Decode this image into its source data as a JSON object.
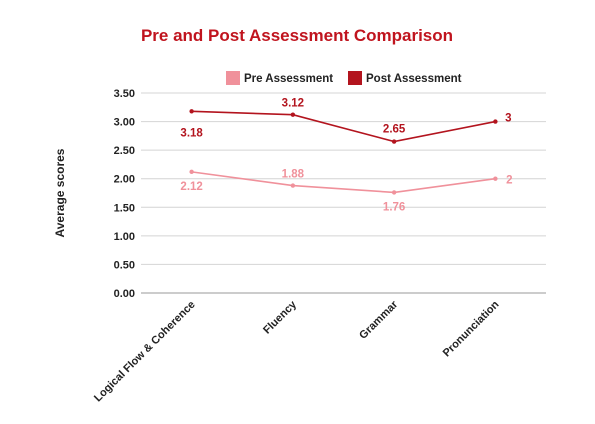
{
  "chart_data": {
    "type": "line",
    "title": "Pre and Post Assessment Comparison",
    "ylabel": "Average scores",
    "xlabel": "",
    "categories": [
      "Logical Flow & Coherence",
      "Fluency",
      "Grammar",
      "Pronunciation"
    ],
    "yticks": [
      "0.00",
      "0.50",
      "1.00",
      "1.50",
      "2.00",
      "2.50",
      "3.00",
      "3.50"
    ],
    "ylim": [
      0,
      3.5
    ],
    "grid": true,
    "legend_position": "top",
    "series": [
      {
        "name": "Pre Assessment",
        "color": "#f0919b",
        "values": [
          2.12,
          1.88,
          1.76,
          2
        ],
        "labels": [
          "2.12",
          "1.88",
          "1.76",
          "2"
        ]
      },
      {
        "name": "Post Assessment",
        "color": "#b3141e",
        "values": [
          3.18,
          3.12,
          2.65,
          3
        ],
        "labels": [
          "3.18",
          "3.12",
          "2.65",
          "3"
        ]
      }
    ],
    "title_color": "#c0141e"
  }
}
